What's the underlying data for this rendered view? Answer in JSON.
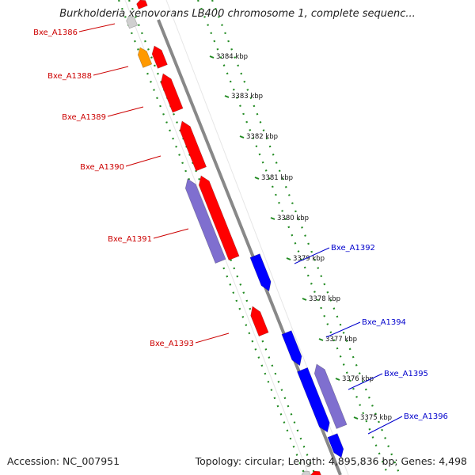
{
  "title": "Burkholderia xenovorans LB400 chromosome 1, complete sequenc...",
  "footer": {
    "accession": "Accession: NC_007951",
    "summary": "Topology: circular; Length: 4,895,836 bp; Genes: 4,498"
  },
  "colors": {
    "forward_gene": "#ff0000",
    "reverse_gene": "#0000ff",
    "cds_forward": "#7f6fcf",
    "rna": "#ff9900",
    "backbone": "#888888",
    "grid_dots": "#228b22",
    "label_forward": "#cc0000",
    "label_reverse": "#0000cc"
  },
  "ticks": [
    "3384 kbp",
    "3383 kbp",
    "3382 kbp",
    "3381 kbp",
    "3380 kbp",
    "3379 kbp",
    "3378 kbp",
    "3377 kbp",
    "3376 kbp",
    "3375 kbp"
  ],
  "left_labels": [
    "Bxe_A1386",
    "Bxe_A1388",
    "Bxe_A1389",
    "Bxe_A1390",
    "Bxe_A1391",
    "Bxe_A1393"
  ],
  "right_labels": [
    "Bxe_A1392",
    "Bxe_A1394",
    "Bxe_A1395",
    "Bxe_A1396"
  ]
}
